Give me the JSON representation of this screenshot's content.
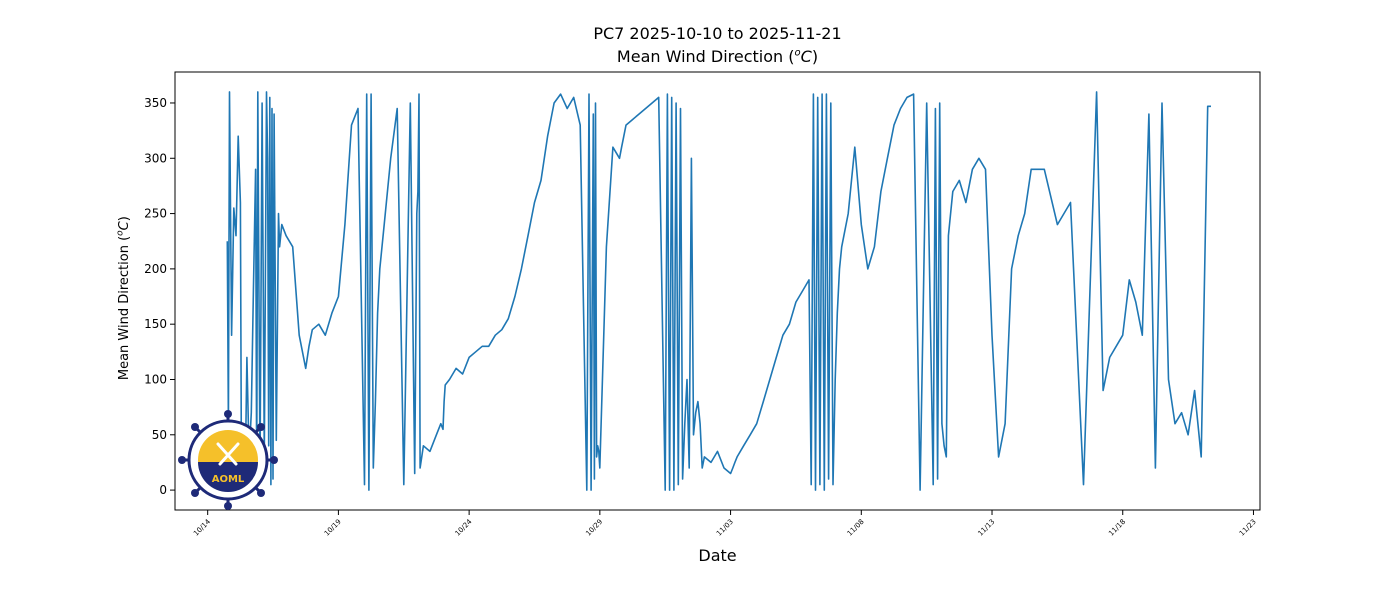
{
  "title_line1": "PC7 2025-10-10 to 2025-11-21",
  "title_line2_prefix": "Mean Wind Direction (",
  "title_line2_unit_sup": "o",
  "title_line2_unit_main": "C",
  "title_line2_suffix": ")",
  "logo_text": "AOML",
  "colors": {
    "line": "#1f77b4",
    "logo_navy": "#1e2a78",
    "logo_gold": "#f5c02a"
  },
  "chart_data": {
    "type": "line",
    "title": "PC7 2025-10-10 to 2025-11-21 Mean Wind Direction (°C)",
    "xlabel": "Date",
    "ylabel": "Mean Wind Direction (°C)",
    "xlim": [
      "2025-10-12T18:00",
      "2025-11-23T06:00"
    ],
    "ylim": [
      -18,
      378
    ],
    "yticks": [
      0,
      50,
      100,
      150,
      200,
      250,
      300,
      350
    ],
    "xticks": [
      {
        "date": "2025-10-14",
        "label": "10/14"
      },
      {
        "date": "2025-10-19",
        "label": "10/19"
      },
      {
        "date": "2025-10-24",
        "label": "10/24"
      },
      {
        "date": "2025-10-29",
        "label": "10/29"
      },
      {
        "date": "2025-11-03",
        "label": "11/03"
      },
      {
        "date": "2025-11-08",
        "label": "11/08"
      },
      {
        "date": "2025-11-13",
        "label": "11/13"
      },
      {
        "date": "2025-11-18",
        "label": "11/18"
      },
      {
        "date": "2025-11-23",
        "label": "11/23"
      }
    ],
    "grid": false,
    "series": [
      {
        "x": [
          "2025-10-14T18:00",
          "2025-10-14T19:00",
          "2025-10-14T20:00",
          "2025-10-14T21:00",
          "2025-10-14T22:00",
          "2025-10-15T00:00",
          "2025-10-15T02:00",
          "2025-10-15T04:00",
          "2025-10-15T06:00",
          "2025-10-15T07:00",
          "2025-10-15T09:00",
          "2025-10-15T11:00",
          "2025-10-15T12:00",
          "2025-10-15T14:00",
          "2025-10-15T16:00",
          "2025-10-15T18:00",
          "2025-10-15T20:00",
          "2025-10-15T21:00",
          "2025-10-15T22:00",
          "2025-10-16T00:00",
          "2025-10-16T02:00",
          "2025-10-16T04:00",
          "2025-10-16T06:00",
          "2025-10-16T07:00",
          "2025-10-16T08:00",
          "2025-10-16T09:00",
          "2025-10-16T10:00",
          "2025-10-16T11:00",
          "2025-10-16T12:00",
          "2025-10-16T13:00",
          "2025-10-16T15:00",
          "2025-10-16T17:00",
          "2025-10-16T18:00",
          "2025-10-16T20:00",
          "2025-10-17T00:00",
          "2025-10-17T06:00",
          "2025-10-17T12:00",
          "2025-10-17T18:00",
          "2025-10-17T21:00",
          "2025-10-18T00:00",
          "2025-10-18T06:00",
          "2025-10-18T12:00",
          "2025-10-18T18:00",
          "2025-10-19T00:00",
          "2025-10-19T06:00",
          "2025-10-19T12:00",
          "2025-10-19T18:00",
          "2025-10-20T00:00",
          "2025-10-20T02:00",
          "2025-10-20T04:00",
          "2025-10-20T06:00",
          "2025-10-20T08:00",
          "2025-10-20T10:00",
          "2025-10-20T11:00",
          "2025-10-20T12:00",
          "2025-10-20T13:00",
          "2025-10-20T14:00",
          "2025-10-20T18:00",
          "2025-10-21T00:00",
          "2025-10-21T06:00",
          "2025-10-21T12:00",
          "2025-10-21T18:00",
          "2025-10-21T22:00",
          "2025-10-22T00:00",
          "2025-10-22T01:00",
          "2025-10-22T02:00",
          "2025-10-22T03:00",
          "2025-10-22T06:00",
          "2025-10-22T12:00",
          "2025-10-22T18:00",
          "2025-10-22T22:00",
          "2025-10-23T00:00",
          "2025-10-23T01:00",
          "2025-10-23T02:00",
          "2025-10-23T06:00",
          "2025-10-23T12:00",
          "2025-10-23T18:00",
          "2025-10-24T00:00",
          "2025-10-24T06:00",
          "2025-10-24T12:00",
          "2025-10-24T18:00",
          "2025-10-25T00:00",
          "2025-10-25T06:00",
          "2025-10-25T12:00",
          "2025-10-25T18:00",
          "2025-10-26T00:00",
          "2025-10-26T06:00",
          "2025-10-26T12:00",
          "2025-10-26T18:00",
          "2025-10-27T00:00",
          "2025-10-27T06:00",
          "2025-10-27T12:00",
          "2025-10-27T18:00",
          "2025-10-28T00:00",
          "2025-10-28T06:00",
          "2025-10-28T12:00",
          "2025-10-28T14:00",
          "2025-10-28T16:00",
          "2025-10-28T18:00",
          "2025-10-28T19:00",
          "2025-10-28T20:00",
          "2025-10-28T21:00",
          "2025-10-28T22:00",
          "2025-10-28T23:00",
          "2025-10-29T00:00",
          "2025-10-29T06:00",
          "2025-10-29T12:00",
          "2025-10-29T18:00",
          "2025-10-29T20:00",
          "2025-10-29T22:00",
          "2025-10-30T00:00",
          "2025-10-30T06:00",
          "2025-10-30T12:00",
          "2025-10-30T18:00",
          "2025-10-31T00:00",
          "2025-10-31T06:00",
          "2025-10-31T12:00",
          "2025-10-31T14:00",
          "2025-10-31T16:00",
          "2025-10-31T18:00",
          "2025-10-31T20:00",
          "2025-10-31T22:00",
          "2025-11-01T00:00",
          "2025-11-01T02:00",
          "2025-11-01T04:00",
          "2025-11-01T06:00",
          "2025-11-01T08:00",
          "2025-11-01T10:00",
          "2025-11-01T12:00",
          "2025-11-01T14:00",
          "2025-11-01T16:00",
          "2025-11-01T18:00",
          "2025-11-01T20:00",
          "2025-11-01T22:00",
          "2025-11-02T00:00",
          "2025-11-02T06:00",
          "2025-11-02T12:00",
          "2025-11-02T18:00",
          "2025-11-03T00:00",
          "2025-11-03T02:00",
          "2025-11-03T04:00",
          "2025-11-03T06:00",
          "2025-11-03T12:00",
          "2025-11-03T18:00",
          "2025-11-04T00:00",
          "2025-11-04T06:00",
          "2025-11-04T12:00",
          "2025-11-04T18:00",
          "2025-11-05T00:00",
          "2025-11-05T06:00",
          "2025-11-05T12:00",
          "2025-11-05T18:00",
          "2025-11-06T00:00",
          "2025-11-06T02:00",
          "2025-11-06T04:00",
          "2025-11-06T06:00",
          "2025-11-06T08:00",
          "2025-11-06T10:00",
          "2025-11-06T12:00",
          "2025-11-06T14:00",
          "2025-11-06T16:00",
          "2025-11-06T18:00",
          "2025-11-06T20:00",
          "2025-11-06T22:00",
          "2025-11-07T00:00",
          "2025-11-07T02:00",
          "2025-11-07T04:00",
          "2025-11-07T06:00",
          "2025-11-07T12:00",
          "2025-11-07T18:00",
          "2025-11-08T00:00",
          "2025-11-08T06:00",
          "2025-11-08T12:00",
          "2025-11-08T18:00",
          "2025-11-09T00:00",
          "2025-11-09T06:00",
          "2025-11-09T12:00",
          "2025-11-09T18:00",
          "2025-11-10T00:00",
          "2025-11-10T06:00",
          "2025-11-10T12:00",
          "2025-11-10T18:00",
          "2025-11-10T20:00",
          "2025-11-10T22:00",
          "2025-11-11T00:00",
          "2025-11-11T02:00",
          "2025-11-11T04:00",
          "2025-11-11T06:00",
          "2025-11-11T08:00",
          "2025-11-11T10:00",
          "2025-11-11T12:00",
          "2025-11-11T18:00",
          "2025-11-12T00:00",
          "2025-11-12T06:00",
          "2025-11-12T12:00",
          "2025-11-12T18:00",
          "2025-11-13T00:00",
          "2025-11-13T06:00",
          "2025-11-13T12:00",
          "2025-11-13T18:00",
          "2025-11-14T00:00",
          "2025-11-14T06:00",
          "2025-11-14T12:00",
          "2025-11-15T00:00",
          "2025-11-15T12:00",
          "2025-11-16T00:00",
          "2025-11-16T12:00",
          "2025-11-17T00:00",
          "2025-11-17T06:00",
          "2025-11-17T12:00",
          "2025-11-17T18:00",
          "2025-11-18T00:00",
          "2025-11-18T06:00",
          "2025-11-18T12:00",
          "2025-11-18T18:00",
          "2025-11-19T00:00",
          "2025-11-19T06:00",
          "2025-11-19T12:00",
          "2025-11-19T18:00",
          "2025-11-20T00:00",
          "2025-11-20T06:00",
          "2025-11-20T12:00",
          "2025-11-20T18:00",
          "2025-11-21T00:00",
          "2025-11-21T06:00",
          "2025-11-21T09:00"
        ],
        "y": [
          225,
          60,
          360,
          245,
          140,
          255,
          230,
          320,
          260,
          0,
          60,
          50,
          120,
          30,
          70,
          180,
          290,
          10,
          360,
          15,
          350,
          30,
          360,
          300,
          40,
          355,
          5,
          345,
          10,
          340,
          45,
          250,
          220,
          240,
          230,
          220,
          140,
          110,
          130,
          145,
          150,
          140,
          160,
          175,
          240,
          330,
          345,
          5,
          358,
          0,
          358,
          20,
          80,
          120,
          160,
          180,
          200,
          240,
          300,
          345,
          5,
          350,
          15,
          250,
          270,
          358,
          20,
          40,
          35,
          50,
          60,
          55,
          80,
          95,
          100,
          110,
          105,
          120,
          125,
          130,
          130,
          140,
          145,
          155,
          175,
          200,
          230,
          260,
          280,
          320,
          350,
          358,
          345,
          355,
          330,
          0,
          358,
          0,
          340,
          10,
          350,
          30,
          40,
          35,
          20,
          220,
          310,
          300,
          310,
          320,
          330,
          335,
          340,
          345,
          350,
          355,
          0,
          358,
          0,
          355,
          0,
          350,
          5,
          345,
          10,
          60,
          100,
          20,
          300,
          50,
          70,
          80,
          60,
          20,
          30,
          25,
          35,
          20,
          15,
          20,
          25,
          30,
          40,
          50,
          60,
          80,
          100,
          120,
          140,
          150,
          170,
          180,
          190,
          5,
          358,
          0,
          355,
          5,
          358,
          0,
          358,
          10,
          350,
          5,
          100,
          160,
          200,
          220,
          250,
          310,
          240,
          200,
          220,
          270,
          300,
          330,
          345,
          355,
          358,
          0,
          350,
          5,
          345,
          10,
          350,
          60,
          40,
          30,
          230,
          250,
          270,
          280,
          260,
          290,
          300,
          290,
          140,
          30,
          60,
          200,
          230,
          250,
          290,
          290,
          240,
          260,
          5,
          360,
          90,
          120,
          130,
          140,
          190,
          170,
          140,
          340,
          20,
          350,
          100,
          60,
          70,
          50,
          90,
          30,
          347,
          347
        ]
      }
    ]
  }
}
